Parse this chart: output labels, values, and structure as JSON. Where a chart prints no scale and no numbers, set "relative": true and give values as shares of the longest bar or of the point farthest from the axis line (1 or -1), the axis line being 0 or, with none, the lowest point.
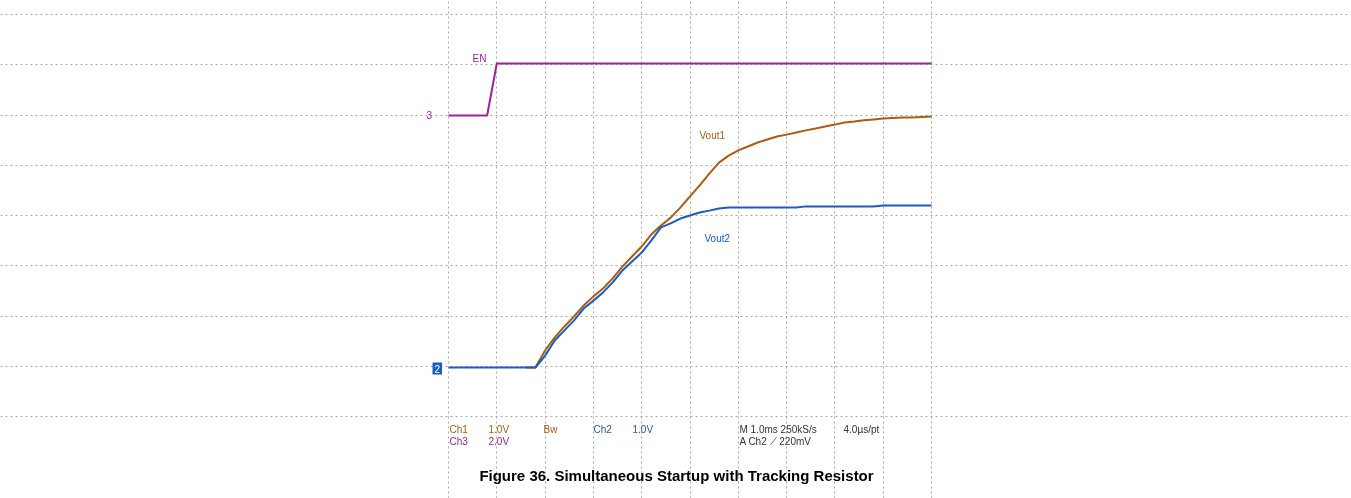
{
  "chart_data": {
    "type": "line",
    "title": "Figure 36. Simultaneous Startup with Tracking Resistor",
    "relative": true,
    "grid": true,
    "legend": false,
    "marker": "none",
    "line_style": "solid",
    "categories": [
      null,
      null,
      null,
      null,
      null,
      null,
      null,
      null,
      null,
      null,
      null,
      null,
      null,
      null,
      null,
      null,
      null,
      null,
      null,
      null,
      null,
      null,
      null,
      null,
      null,
      null,
      null,
      null,
      null,
      null,
      null,
      null,
      null,
      null,
      null,
      null,
      null,
      null,
      null,
      null,
      null,
      null,
      null,
      null,
      null,
      null,
      null,
      null,
      null,
      null,
      null
    ],
    "series": [
      {
        "name": "EN",
        "color": "#a020a0",
        "values": [
          0.829,
          0.829,
          0.829,
          0.829,
          0.829,
          1.0,
          1.0,
          1.0,
          1.0,
          1.0,
          1.0,
          1.0,
          1.0,
          1.0,
          1.0,
          1.0,
          1.0,
          1.0,
          1.0,
          1.0,
          1.0,
          1.0,
          1.0,
          1.0,
          1.0,
          1.0,
          1.0,
          1.0,
          1.0,
          1.0,
          1.0,
          1.0,
          1.0,
          1.0,
          1.0,
          1.0,
          1.0,
          1.0,
          1.0,
          1.0,
          1.0,
          1.0,
          1.0,
          1.0,
          1.0,
          1.0,
          1.0,
          1.0,
          1.0,
          1.0,
          1.0
        ]
      },
      {
        "name": "Vout1",
        "color": "#b05a10",
        "values": [
          null,
          null,
          null,
          null,
          null,
          null,
          null,
          null,
          0,
          0,
          0.056,
          0.099,
          0.135,
          0.168,
          0.204,
          0.234,
          0.26,
          0.293,
          0.332,
          0.365,
          0.398,
          0.438,
          0.467,
          0.493,
          0.526,
          0.563,
          0.599,
          0.638,
          0.674,
          0.697,
          0.714,
          0.727,
          0.74,
          0.75,
          0.76,
          0.766,
          0.773,
          0.78,
          0.786,
          0.793,
          0.799,
          0.806,
          0.809,
          0.813,
          0.816,
          0.819,
          0.821,
          0.822,
          0.822,
          0.824,
          0.826
        ]
      },
      {
        "name": "Vout2",
        "color": "#1a5cc0",
        "values": [
          0,
          0,
          0,
          0,
          0,
          0,
          0,
          0,
          0,
          0,
          0.039,
          0.089,
          0.122,
          0.155,
          0.194,
          0.22,
          0.247,
          0.28,
          0.319,
          0.349,
          0.378,
          0.418,
          0.461,
          0.474,
          0.49,
          0.5,
          0.51,
          0.516,
          0.523,
          0.526,
          0.526,
          0.526,
          0.526,
          0.526,
          0.526,
          0.526,
          0.526,
          0.53,
          0.53,
          0.53,
          0.53,
          0.53,
          0.53,
          0.53,
          0.53,
          0.533,
          0.533,
          0.533,
          0.533,
          0.533,
          0.533
        ]
      }
    ],
    "annotations": [
      "Ch1",
      "1.0V",
      "Ch3",
      "2.0V",
      "Bw",
      "Ch2",
      "1.0V",
      "M 1.0ms 250kS/s",
      "4.0µs/pt",
      "A Ch2 ⟋ 220mV",
      "3",
      "2"
    ]
  }
}
